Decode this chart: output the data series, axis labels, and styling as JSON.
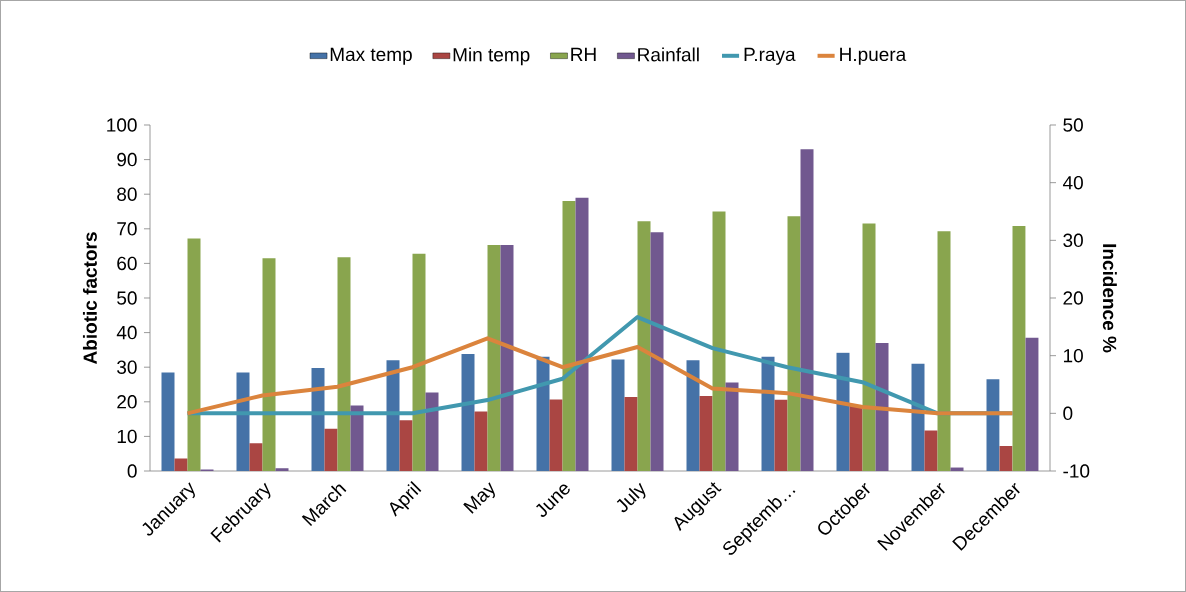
{
  "chart_data": {
    "type": "bar",
    "ylabel": "Abiotic factors",
    "y2label": "Incidence %",
    "categories": [
      "January",
      "February",
      "March",
      "April",
      "May",
      "June",
      "July",
      "August",
      "Septemb…",
      "October",
      "November",
      "December"
    ],
    "series": [
      {
        "name": "Max temp",
        "color": "#4572a7",
        "values": [
          28.5,
          28.5,
          29.8,
          32,
          33.8,
          33,
          32.2,
          32,
          33,
          34.2,
          31,
          26.5
        ]
      },
      {
        "name": "Min temp",
        "color": "#aa4643",
        "values": [
          3.6,
          8,
          12.2,
          14.7,
          17.2,
          20.7,
          21.4,
          21.7,
          20.6,
          19,
          11.7,
          7.2
        ]
      },
      {
        "name": "RH",
        "color": "#89a54e",
        "values": [
          67.2,
          61.5,
          61.8,
          62.8,
          65.3,
          78,
          72.2,
          75,
          73.6,
          71.5,
          69.3,
          70.8
        ]
      },
      {
        "name": "Rainfall",
        "color": "#71588f",
        "values": [
          0.4,
          0.8,
          18.9,
          22.7,
          65.3,
          79,
          69,
          25.6,
          93,
          37,
          1,
          38.5
        ]
      },
      {
        "name": "P.raya",
        "color": "#4198af",
        "type": "line",
        "axis": "y2",
        "values": [
          0,
          0,
          0,
          0,
          2.3,
          6,
          16.7,
          11.3,
          8,
          5.4,
          0,
          0
        ]
      },
      {
        "name": "H.puera",
        "color": "#db843d",
        "type": "line",
        "axis": "y2",
        "values": [
          0,
          3.1,
          4.6,
          8,
          13,
          8,
          11.5,
          4.3,
          3.5,
          1.1,
          0,
          0
        ]
      }
    ],
    "ylim": [
      0,
      100
    ],
    "yticks": [
      0,
      10,
      20,
      30,
      40,
      50,
      60,
      70,
      80,
      90,
      100
    ],
    "y2lim": [
      -10,
      50
    ],
    "y2ticks": [
      -10,
      0,
      10,
      20,
      30,
      40,
      50
    ],
    "legend": "top",
    "marker": "none",
    "grid": false
  }
}
